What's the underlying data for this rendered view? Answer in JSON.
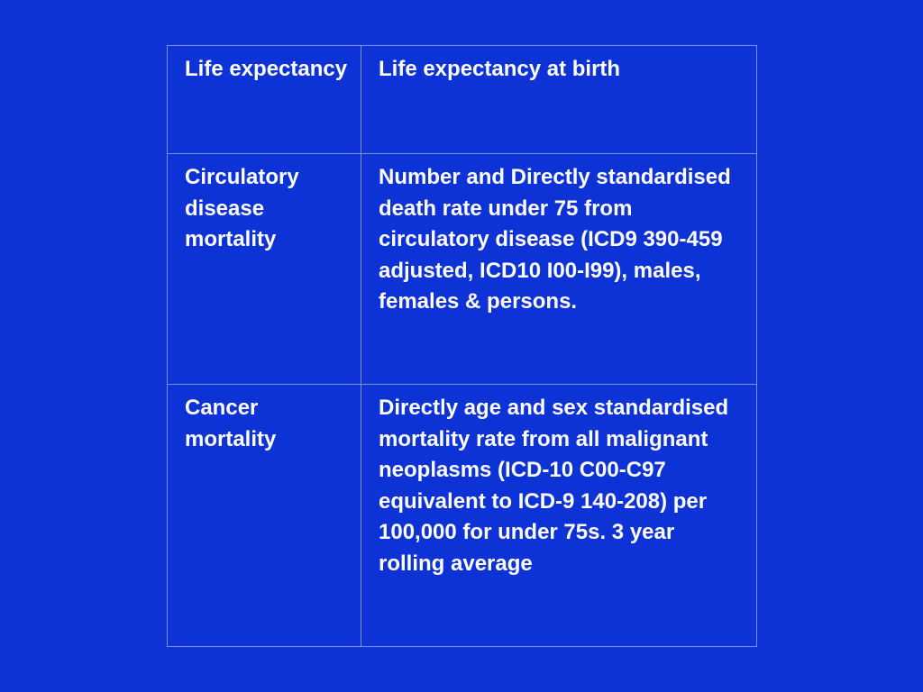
{
  "table": {
    "rows": [
      {
        "indicator": "Life expectancy",
        "definition": "Life expectancy at birth"
      },
      {
        "indicator": "Circulatory disease mortality",
        "definition": "Number and Directly standardised death rate under 75 from circulatory disease (ICD9 390-459 adjusted, ICD10 I00-I99), males, females & persons."
      },
      {
        "indicator": "Cancer mortality",
        "definition": "Directly age and sex standardised mortality rate from all malignant neoplasms (ICD-10 C00-C97 equivalent to ICD-9 140-208) per 100,000 for under 75s. 3 year rolling average"
      }
    ]
  },
  "colors": {
    "background": "#0d32d6",
    "text": "#ffffff",
    "border": "#7d8fd6"
  }
}
